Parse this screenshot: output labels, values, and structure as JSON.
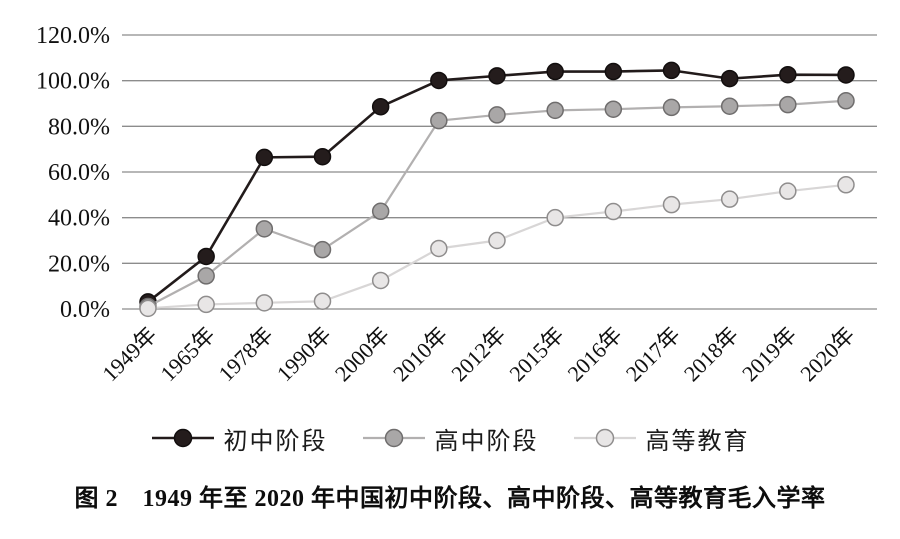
{
  "figure": {
    "caption": "图 2　1949 年至 2020 年中国初中阶段、高中阶段、高等教育毛入学率"
  },
  "chart_data": {
    "type": "line",
    "title": "",
    "xlabel": "",
    "ylabel": "",
    "categories": [
      "1949年",
      "1965年",
      "1978年",
      "1990年",
      "2000年",
      "2010年",
      "2012年",
      "2015年",
      "2016年",
      "2017年",
      "2018年",
      "2019年",
      "2020年"
    ],
    "series": [
      {
        "id": "junior-secondary",
        "name": "初中阶段",
        "values": [
          3.1,
          23.0,
          66.4,
          66.7,
          88.6,
          100.1,
          102.1,
          104.0,
          104.0,
          104.5,
          100.9,
          102.6,
          102.5
        ],
        "line_color": "#221b1b",
        "marker_fill": "#241c1c",
        "marker_stroke": "#120e0e"
      },
      {
        "id": "senior-secondary",
        "name": "高中阶段",
        "values": [
          1.1,
          14.5,
          35.1,
          26.0,
          42.8,
          82.5,
          85.0,
          87.0,
          87.5,
          88.3,
          88.8,
          89.5,
          91.2
        ],
        "line_color": "#b2b0b0",
        "marker_fill": "#a9a7a7",
        "marker_stroke": "#6f6d6d"
      },
      {
        "id": "higher-education",
        "name": "高等教育",
        "values": [
          0.3,
          2.0,
          2.7,
          3.4,
          12.5,
          26.5,
          30.0,
          40.0,
          42.7,
          45.7,
          48.1,
          51.6,
          54.4
        ],
        "line_color": "#d8d6d6",
        "marker_fill": "#e8e6e6",
        "marker_stroke": "#8f8d8d"
      }
    ],
    "y_tick_labels": [
      "0.0%",
      "20.0%",
      "40.0%",
      "60.0%",
      "80.0%",
      "100.0%",
      "120.0%"
    ],
    "y_tick_step": 20,
    "ylim": [
      0,
      120
    ],
    "grid": true,
    "grid_color": "#8c8c8c",
    "text_color": "#111111",
    "legend_position": "bottom"
  }
}
